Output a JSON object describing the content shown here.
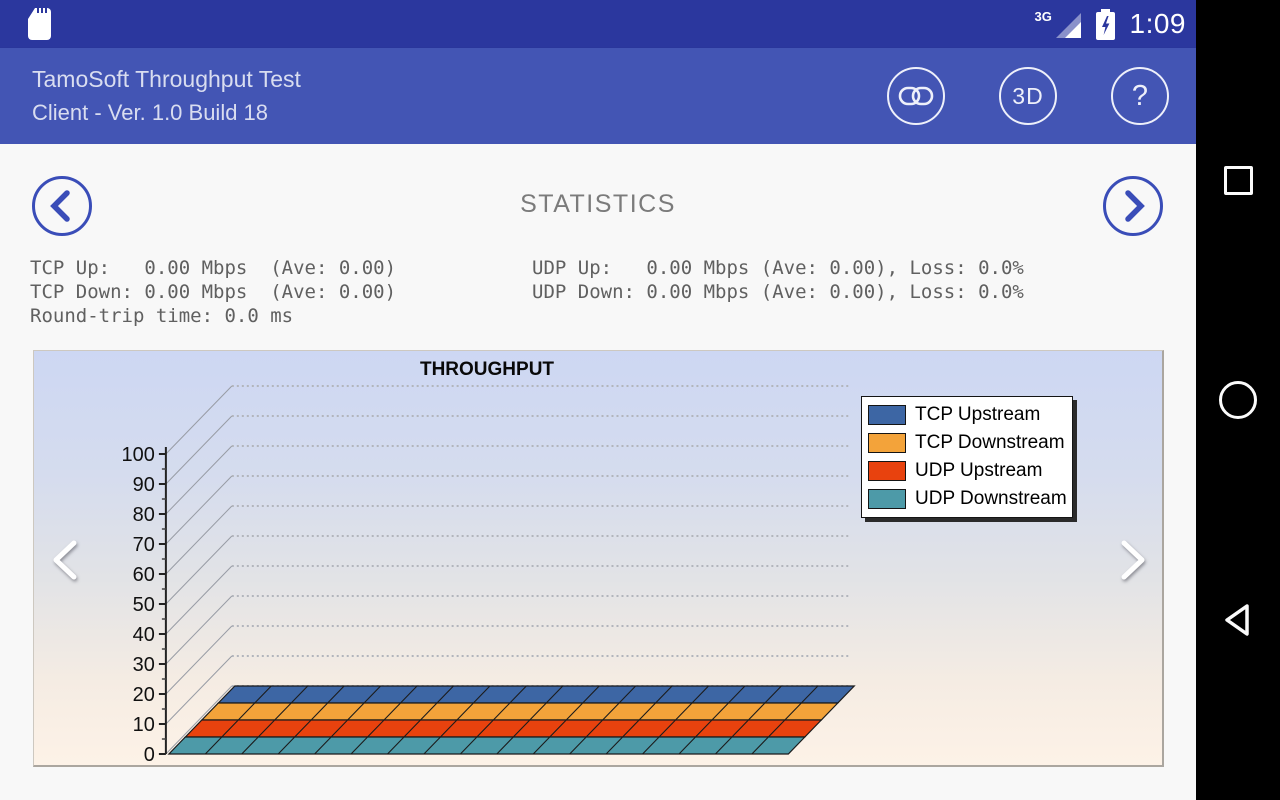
{
  "status_bar": {
    "time": "1:09",
    "network_label": "3G",
    "icons": [
      "sd-card-icon",
      "signal-3g-icon",
      "battery-charging-icon"
    ]
  },
  "app_bar": {
    "title_line1": "TamoSoft Throughput Test",
    "title_line2": "Client - Ver. 1.0 Build 18",
    "buttons": {
      "view_3d_label": "3D",
      "help_label": "?"
    },
    "icon_names": [
      "link-icon",
      "3d-toggle",
      "help-icon"
    ]
  },
  "page": {
    "title": "STATISTICS"
  },
  "stats": {
    "tcp_up": "TCP Up:   0.00 Mbps  (Ave: 0.00)",
    "tcp_down": "TCP Down: 0.00 Mbps  (Ave: 0.00)",
    "round_trip": "Round-trip time: 0.0 ms",
    "udp_up": "UDP Up:   0.00 Mbps (Ave: 0.00), Loss: 0.0%",
    "udp_down": "UDP Down: 0.00 Mbps (Ave: 0.00), Loss: 0.0%"
  },
  "chart_data": {
    "type": "area",
    "style": "3d-stacked-ribbon",
    "title": "THROUGHPUT",
    "xlabel": "",
    "ylabel": "",
    "ylim": [
      0,
      100
    ],
    "ytick_step": 10,
    "grid": true,
    "legend_position": "top-right",
    "series": [
      {
        "name": "TCP Upstream",
        "color": "#3d66a4",
        "values": [
          0,
          0,
          0,
          0,
          0,
          0,
          0,
          0,
          0,
          0,
          0,
          0,
          0,
          0,
          0,
          0,
          0,
          0
        ]
      },
      {
        "name": "TCP Downstream",
        "color": "#f3a33a",
        "values": [
          0,
          0,
          0,
          0,
          0,
          0,
          0,
          0,
          0,
          0,
          0,
          0,
          0,
          0,
          0,
          0,
          0,
          0
        ]
      },
      {
        "name": "UDP Upstream",
        "color": "#e8420e",
        "values": [
          0,
          0,
          0,
          0,
          0,
          0,
          0,
          0,
          0,
          0,
          0,
          0,
          0,
          0,
          0,
          0,
          0,
          0
        ]
      },
      {
        "name": "UDP Downstream",
        "color": "#4d9aa8",
        "values": [
          0,
          0,
          0,
          0,
          0,
          0,
          0,
          0,
          0,
          0,
          0,
          0,
          0,
          0,
          0,
          0,
          0,
          0
        ]
      }
    ]
  },
  "colors": {
    "status_bar_bg": "#2b379e",
    "app_bar_bg": "#4355b4",
    "accent": "#3a4db8",
    "chart_bg_top": "#cdd7f3",
    "chart_bg_bottom": "#fdf2e7"
  },
  "nav_bar": {
    "icons": [
      "overview-square-icon",
      "home-circle-icon",
      "back-triangle-icon"
    ]
  }
}
